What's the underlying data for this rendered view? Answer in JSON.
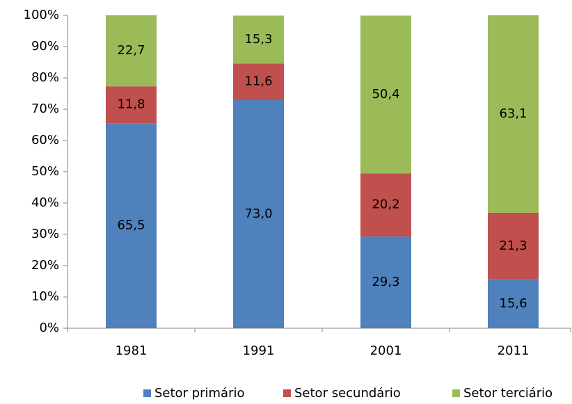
{
  "chart_data": {
    "type": "stacked_bar",
    "categories": [
      "1981",
      "1991",
      "2001",
      "2011"
    ],
    "series": [
      {
        "name": "Setor primário",
        "color": "#4f81bd",
        "values": [
          65.5,
          73.0,
          29.3,
          15.6
        ],
        "value_labels": [
          "65,5",
          "73,0",
          "29,3",
          "15,6"
        ]
      },
      {
        "name": "Setor secundário",
        "color": "#c0504d",
        "values": [
          11.8,
          11.6,
          20.2,
          21.3
        ],
        "value_labels": [
          "11,8",
          "11,6",
          "20,2",
          "21,3"
        ]
      },
      {
        "name": "Setor terciário",
        "color": "#9bbb59",
        "values": [
          22.7,
          15.3,
          50.4,
          63.1
        ],
        "value_labels": [
          "22,7",
          "15,3",
          "50,4",
          "63,1"
        ]
      }
    ],
    "ylim": [
      0,
      100
    ],
    "yticks": [
      {
        "value": 0,
        "label": "0%"
      },
      {
        "value": 10,
        "label": "10%"
      },
      {
        "value": 20,
        "label": "20%"
      },
      {
        "value": 30,
        "label": "30%"
      },
      {
        "value": 40,
        "label": "40%"
      },
      {
        "value": 50,
        "label": "50%"
      },
      {
        "value": 60,
        "label": "60%"
      },
      {
        "value": 70,
        "label": "70%"
      },
      {
        "value": 80,
        "label": "80%"
      },
      {
        "value": 90,
        "label": "90%"
      },
      {
        "value": 100,
        "label": "100%"
      }
    ],
    "grid": false,
    "legend": "bottom"
  }
}
